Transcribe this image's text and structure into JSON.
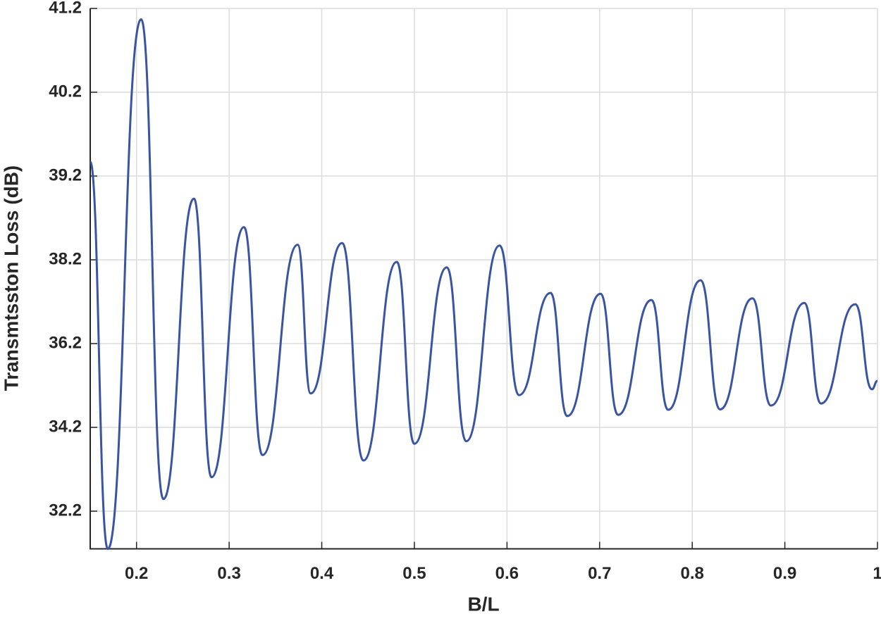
{
  "chart_data": {
    "type": "line",
    "xlabel": "B/L",
    "ylabel": "Transmtsston Loss (dB)",
    "x": [
      0.15,
      0.169,
      0.205,
      0.229,
      0.262,
      0.281,
      0.316,
      0.336,
      0.374,
      0.388,
      0.422,
      0.445,
      0.481,
      0.5,
      0.535,
      0.556,
      0.592,
      0.613,
      0.647,
      0.665,
      0.701,
      0.72,
      0.756,
      0.774,
      0.809,
      0.83,
      0.865,
      0.885,
      0.921,
      0.939,
      0.976,
      0.994,
      1.0
    ],
    "series": [
      {
        "color": "#3a54a4",
        "values": [
          39.37,
          31.3,
          41.07,
          32.49,
          38.93,
          33.01,
          38.59,
          33.54,
          38.38,
          35.01,
          38.4,
          33.41,
          38.15,
          33.81,
          38.02,
          33.87,
          38.37,
          34.97,
          37.41,
          34.47,
          37.39,
          34.5,
          37.24,
          34.62,
          37.71,
          34.63,
          37.28,
          34.72,
          37.17,
          34.77,
          37.14,
          35.11,
          35.31
        ]
      }
    ],
    "xlim": [
      0.15,
      1
    ],
    "xticks": [
      0.2,
      0.3,
      0.4,
      0.5,
      0.6,
      0.7,
      0.8,
      0.9,
      1
    ],
    "ylim": [
      31.3,
      41.2
    ],
    "yticks": [
      32.2,
      34.2,
      36.2,
      38.2,
      39.2,
      40.2,
      41.2
    ],
    "grid": true
  }
}
